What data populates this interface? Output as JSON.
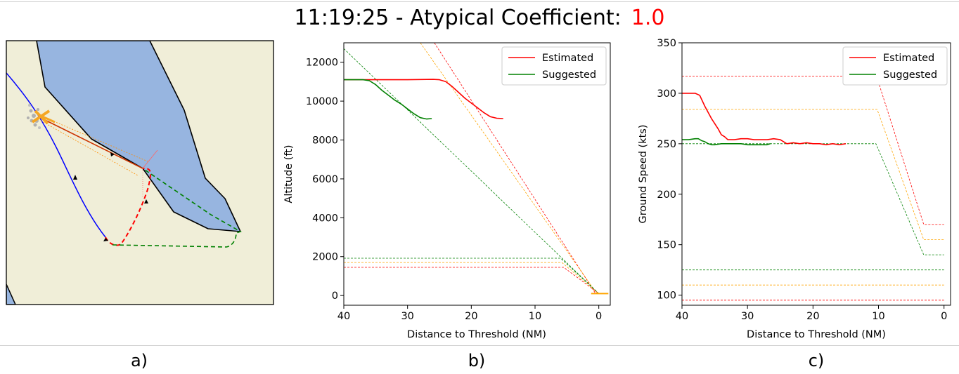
{
  "header": {
    "time": "11:19:25",
    "separator": " - ",
    "label": "Atypical Coefficient:",
    "value": "1.0"
  },
  "captions": [
    "a)",
    "b)",
    "c)"
  ],
  "colors": {
    "estimated": "#ff0000",
    "suggested": "#008000",
    "orange": "#ffa500",
    "blue": "#0000ff",
    "map_land": "#f0eed8",
    "map_water": "#97b5e0"
  },
  "chart_data": [
    {
      "type": "line",
      "panel": "b)",
      "xlabel": "Distance to Threshold (NM)",
      "ylabel": "Altitude (ft)",
      "xlim": [
        40,
        -1.8
      ],
      "ylim": [
        -500,
        13000
      ],
      "xticks": [
        40,
        30,
        20,
        10,
        0
      ],
      "yticks": [
        0,
        2000,
        4000,
        6000,
        8000,
        10000,
        12000
      ],
      "legend": {
        "position": "top-right",
        "entries": [
          "Estimated",
          "Suggested"
        ]
      },
      "series": [
        {
          "name": "Estimated",
          "color": "#ff0000",
          "width": 1.6,
          "x": [
            40,
            35,
            30,
            26,
            25,
            24,
            23,
            22,
            21,
            20,
            19,
            18,
            17,
            16,
            15
          ],
          "y": [
            11100,
            11100,
            11100,
            11120,
            11100,
            11000,
            10750,
            10450,
            10150,
            9900,
            9650,
            9400,
            9200,
            9120,
            9100
          ]
        },
        {
          "name": "Suggested",
          "color": "#008000",
          "width": 1.6,
          "x": [
            40,
            37,
            36,
            35,
            34,
            33,
            32,
            31,
            30,
            29,
            28,
            27,
            26.2
          ],
          "y": [
            11100,
            11100,
            11050,
            10850,
            10550,
            10300,
            10050,
            9850,
            9600,
            9350,
            9150,
            9080,
            9100
          ]
        }
      ],
      "guides": [
        {
          "color": "#ff0000",
          "x": [
            25.8,
            0.5
          ],
          "y": [
            13000,
            100
          ]
        },
        {
          "color": "#ffa500",
          "x": [
            28,
            0.3
          ],
          "y": [
            13000,
            100
          ]
        },
        {
          "color": "#008000",
          "x": [
            40,
            0
          ],
          "y": [
            12700,
            100
          ]
        },
        {
          "color": "#ff0000",
          "x": [
            40,
            5.5,
            0
          ],
          "y": [
            1450,
            1450,
            100
          ]
        },
        {
          "color": "#ffa500",
          "x": [
            40,
            5.8,
            0
          ],
          "y": [
            1700,
            1700,
            100
          ]
        },
        {
          "color": "#008000",
          "x": [
            40,
            6,
            0
          ],
          "y": [
            1920,
            1920,
            100
          ]
        }
      ],
      "segments": [
        {
          "color": "#ffa500",
          "x": [
            1.2,
            -1.5
          ],
          "y": [
            100,
            100
          ]
        }
      ]
    },
    {
      "type": "line",
      "panel": "c)",
      "xlabel": "Distance to Threshold (NM)",
      "ylabel": "Ground Speed (kts)",
      "xlim": [
        40,
        -1
      ],
      "ylim": [
        90,
        350
      ],
      "xticks": [
        40,
        30,
        20,
        10,
        0
      ],
      "yticks": [
        100,
        150,
        200,
        250,
        300,
        350
      ],
      "legend": {
        "position": "top-right",
        "entries": [
          "Estimated",
          "Suggested"
        ]
      },
      "series": [
        {
          "name": "Estimated",
          "color": "#ff0000",
          "width": 1.6,
          "x": [
            40,
            38,
            37.3,
            36.5,
            35.5,
            34.5,
            34,
            33.5,
            33,
            32,
            31,
            30,
            29,
            28,
            27,
            26,
            25,
            24,
            23,
            22,
            21,
            20,
            19,
            18,
            17,
            16,
            15
          ],
          "y": [
            300,
            300,
            298,
            287,
            275,
            265,
            259,
            257,
            254,
            254,
            255,
            255,
            254,
            254,
            254,
            255,
            254,
            250,
            251,
            250,
            251,
            250,
            250,
            249,
            250,
            249,
            250
          ]
        },
        {
          "name": "Suggested",
          "color": "#008000",
          "width": 1.6,
          "x": [
            40,
            39,
            38,
            37.5,
            37,
            36.5,
            36,
            35.5,
            35,
            34,
            33,
            32,
            31,
            30,
            29,
            28,
            27,
            26.5
          ],
          "y": [
            254,
            254,
            255,
            255,
            253,
            252,
            250,
            249,
            249,
            250,
            250,
            250,
            250,
            249,
            249,
            249,
            249,
            250
          ]
        }
      ],
      "guides": [
        {
          "color": "#ff0000",
          "x": [
            40,
            10.3,
            3.1,
            0
          ],
          "y": [
            317,
            317,
            170,
            170
          ]
        },
        {
          "color": "#ffa500",
          "x": [
            40,
            10.2,
            3.1,
            0
          ],
          "y": [
            284,
            284,
            155,
            155
          ]
        },
        {
          "color": "#008000",
          "x": [
            40,
            10.4,
            3.1,
            0
          ],
          "y": [
            250,
            250,
            140,
            140
          ]
        },
        {
          "color": "#008000",
          "x": [
            40,
            0
          ],
          "y": [
            125,
            125
          ]
        },
        {
          "color": "#ffa500",
          "x": [
            40,
            0
          ],
          "y": [
            110,
            110
          ]
        },
        {
          "color": "#ff0000",
          "x": [
            40,
            0
          ],
          "y": [
            95,
            95
          ]
        }
      ]
    }
  ]
}
